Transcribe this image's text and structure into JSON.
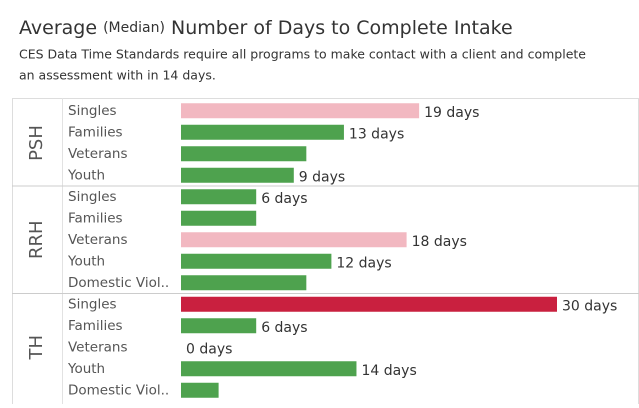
{
  "chart_data": {
    "type": "bar",
    "title": "Average",
    "title_note": "(Median)",
    "title_rest": "Number of Days to Complete Intake",
    "subtitle": [
      "CES Data Time Standards require all programs to make contact with a client and complete",
      "an assessment with in 14 days."
    ],
    "xlim": [
      0,
      30
    ],
    "groups": [
      {
        "name": "PSH",
        "categories": [
          "Singles",
          "Families",
          "Veterans",
          "Youth"
        ],
        "values": [
          19,
          13,
          10,
          9
        ],
        "value_labels": [
          "19 days",
          "13 days",
          null,
          "9 days"
        ],
        "colors": [
          "#f2b8c1",
          "#4ea24e",
          "#4ea24e",
          "#4ea24e"
        ]
      },
      {
        "name": "RRH",
        "categories": [
          "Singles",
          "Families",
          "Veterans",
          "Youth",
          "Domestic Viol.."
        ],
        "values": [
          6,
          6,
          18,
          12,
          10
        ],
        "value_labels": [
          "6 days",
          null,
          "18 days",
          "12 days",
          null
        ],
        "colors": [
          "#4ea24e",
          "#4ea24e",
          "#f2b8c1",
          "#4ea24e",
          "#4ea24e"
        ]
      },
      {
        "name": "TH",
        "categories": [
          "Singles",
          "Families",
          "Veterans",
          "Youth",
          "Domestic Viol.."
        ],
        "values": [
          30,
          6,
          0,
          14,
          3
        ],
        "value_labels": [
          "30 days",
          "6 days",
          "0 days",
          "14 days",
          null
        ],
        "colors": [
          "#c9203f",
          "#4ea24e",
          "#4ea24e",
          "#4ea24e",
          "#4ea24e"
        ]
      }
    ]
  }
}
